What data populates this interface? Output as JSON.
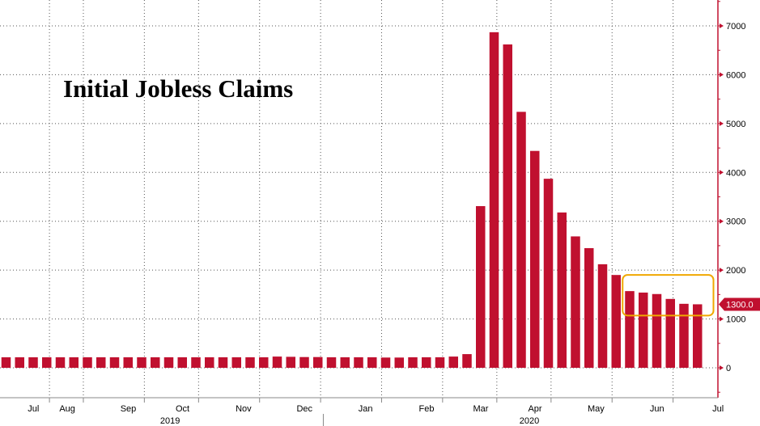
{
  "chart_data": {
    "type": "bar",
    "title": "Initial Jobless Claims",
    "xlabel": "",
    "ylabel": "",
    "y_axis_side": "right",
    "ylim": [
      -700,
      7500
    ],
    "yticks": [
      0,
      1000,
      2000,
      3000,
      4000,
      5000,
      6000,
      7000
    ],
    "grid": true,
    "colors": {
      "bar": "#c0102f",
      "axis": "#c0102f",
      "highlight": "#f0a800"
    },
    "x_month_labels": [
      {
        "label": "Jul",
        "bar_index": 1
      },
      {
        "label": "Aug",
        "bar_index": 3.5
      },
      {
        "label": "Sep",
        "bar_index": 8
      },
      {
        "label": "Oct",
        "bar_index": 12
      },
      {
        "label": "Nov",
        "bar_index": 16.5
      },
      {
        "label": "Dec",
        "bar_index": 21
      },
      {
        "label": "Jan",
        "bar_index": 25.5
      },
      {
        "label": "Feb",
        "bar_index": 30
      },
      {
        "label": "Mar",
        "bar_index": 34
      },
      {
        "label": "Apr",
        "bar_index": 38
      },
      {
        "label": "May",
        "bar_index": 42.5
      },
      {
        "label": "Jun",
        "bar_index": 47
      },
      {
        "label": "Jul",
        "bar_index": 51.5
      }
    ],
    "year_labels": [
      {
        "label": "2019",
        "bar_index": 11.5
      },
      {
        "label": "2020",
        "bar_index": 38
      }
    ],
    "year_divider_bar_index": 23.4,
    "values": [
      215,
      215,
      215,
      215,
      215,
      215,
      215,
      215,
      215,
      215,
      215,
      215,
      215,
      215,
      215,
      215,
      215,
      215,
      215,
      215,
      230,
      225,
      220,
      220,
      215,
      215,
      215,
      215,
      210,
      210,
      215,
      215,
      215,
      230,
      280,
      3310,
      6870,
      6620,
      5240,
      4440,
      3870,
      3180,
      2690,
      2450,
      2120,
      1900,
      1570,
      1540,
      1510,
      1410,
      1310,
      1300
    ],
    "highlight_bar_indices": [
      46,
      51
    ],
    "last_value_label": "1300.0"
  }
}
